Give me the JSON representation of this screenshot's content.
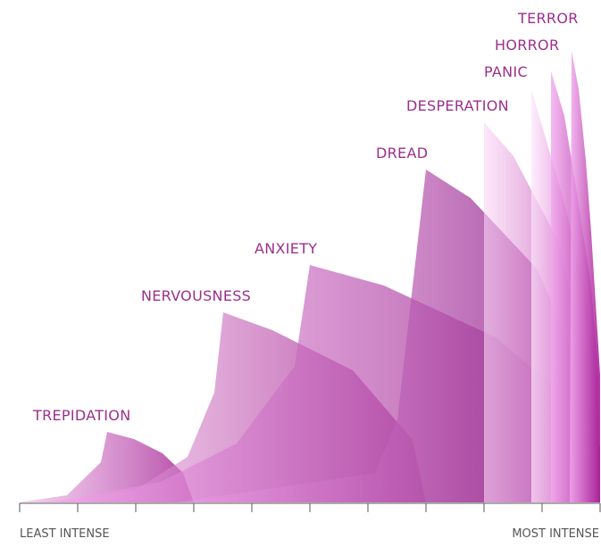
{
  "emotions": [
    "TREPIDATION",
    "NERVOUSNESS",
    "ANXIETY",
    "DREAD",
    "DESPERATION",
    "PANIC",
    "HORROR",
    "TERROR"
  ],
  "axis": {
    "left_label": "LEAST INTENSE",
    "right_label": "MOST INTENSE"
  }
}
